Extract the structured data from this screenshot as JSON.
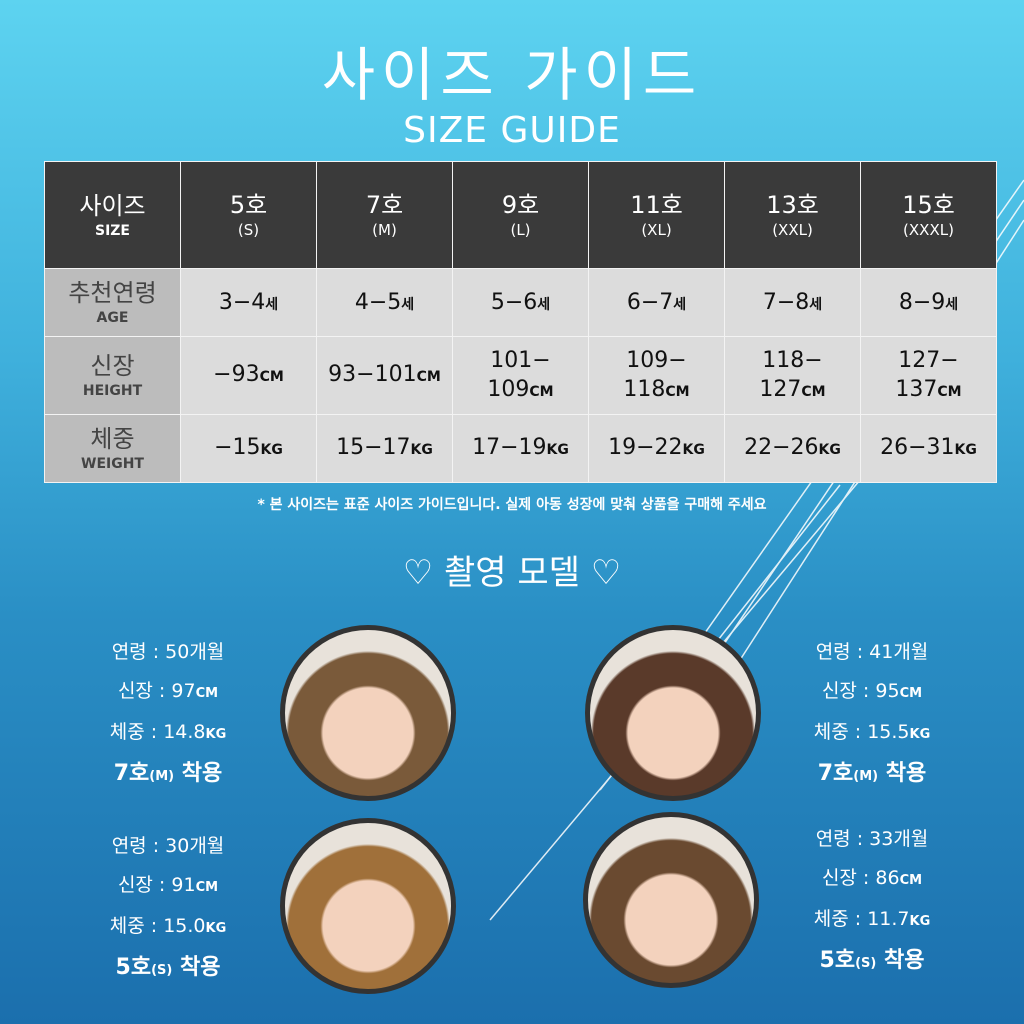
{
  "title": "사이즈 가이드",
  "subtitle": "SIZE GUIDE",
  "table": {
    "corner": {
      "ko": "사이즈",
      "en": "SIZE"
    },
    "sizes": [
      {
        "ko": "5호",
        "en": "(S)"
      },
      {
        "ko": "7호",
        "en": "(M)"
      },
      {
        "ko": "9호",
        "en": "(L)"
      },
      {
        "ko": "11호",
        "en": "(XL)"
      },
      {
        "ko": "13호",
        "en": "(XXL)"
      },
      {
        "ko": "15호",
        "en": "(XXXL)"
      }
    ],
    "rows": [
      {
        "ko": "추천연령",
        "en": "AGE",
        "unit": "세",
        "values": [
          "3−4",
          "4−5",
          "5−6",
          "6−7",
          "7−8",
          "8−9"
        ]
      },
      {
        "ko": "신장",
        "en": "HEIGHT",
        "unit": "CM",
        "values": [
          "−93",
          "93−101",
          "101−\n109",
          "109−\n118",
          "118−\n127",
          "127−\n137"
        ]
      },
      {
        "ko": "체중",
        "en": "WEIGHT",
        "unit": "KG",
        "values": [
          "−15",
          "15−17",
          "17−19",
          "19−22",
          "22−26",
          "26−31"
        ]
      }
    ]
  },
  "note": "* 본 사이즈는 표준 사이즈 가이드입니다. 실제 아동 성장에 맞춰 상품을 구매해 주세요",
  "models_title": "♡ 촬영 모델 ♡",
  "models": [
    {
      "age": "연령 : 50개월",
      "height": "신장 : 97",
      "weight": "체중 : 14.8",
      "wear": "7호",
      "wear_size": "(M)",
      "wear_suffix": " 착용"
    },
    {
      "age": "연령 : 41개월",
      "height": "신장 : 95",
      "weight": "체중 : 15.5",
      "wear": "7호",
      "wear_size": "(M)",
      "wear_suffix": " 착용"
    },
    {
      "age": "연령 : 30개월",
      "height": "신장 : 91",
      "weight": "체중 : 15.0",
      "wear": "5호",
      "wear_size": "(S)",
      "wear_suffix": " 착용"
    },
    {
      "age": "연령 : 33개월",
      "height": "신장 : 86",
      "weight": "체중 : 11.7",
      "wear": "5호",
      "wear_size": "(S)",
      "wear_suffix": " 착용"
    }
  ],
  "units": {
    "cm": "CM",
    "kg": "KG"
  }
}
